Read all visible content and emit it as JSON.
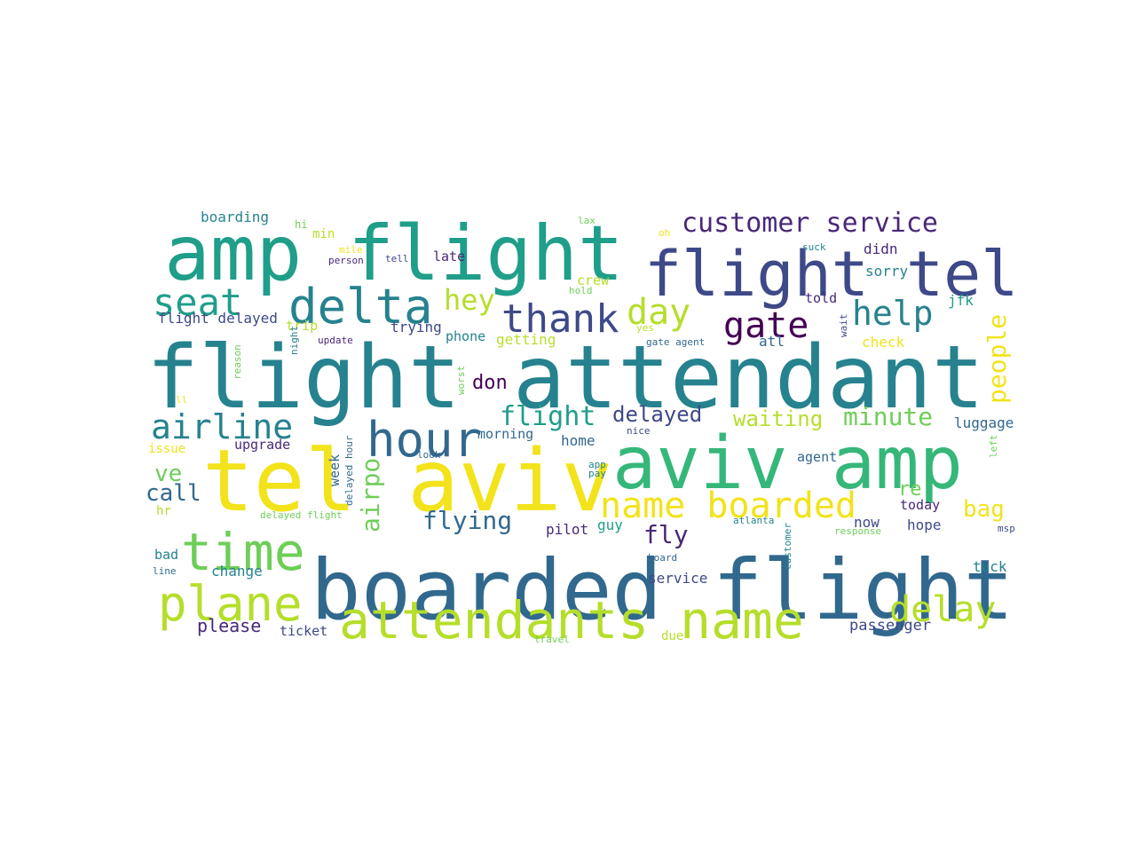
{
  "palette": {
    "yellow": "#f2e31a",
    "lime": "#b5de2b",
    "green": "#6ece58",
    "emerald": "#35b779",
    "teal": "#1f9e89",
    "cyan": "#26828e",
    "blue": "#31688e",
    "indigo": "#3e4989",
    "violet": "#482878",
    "purple": "#440154"
  },
  "words": [
    {
      "text": "flight attendant",
      "color": "cyan"
    },
    {
      "text": "boarded flight",
      "color": "blue"
    },
    {
      "text": "tel aviv",
      "color": "yellow"
    },
    {
      "text": "aviv amp",
      "color": "emerald"
    },
    {
      "text": "amp flight",
      "color": "teal"
    },
    {
      "text": "flight tel",
      "color": "indigo"
    },
    {
      "text": "attendants name",
      "color": "lime"
    },
    {
      "text": "delta",
      "color": "cyan"
    },
    {
      "text": "hour",
      "color": "blue"
    },
    {
      "text": "time",
      "color": "green"
    },
    {
      "text": "plane",
      "color": "lime"
    },
    {
      "text": "name boarded",
      "color": "yellow"
    },
    {
      "text": "thank",
      "color": "indigo"
    },
    {
      "text": "seat",
      "color": "teal"
    },
    {
      "text": "airline",
      "color": "cyan"
    },
    {
      "text": "help",
      "color": "cyan"
    },
    {
      "text": "gate",
      "color": "purple"
    },
    {
      "text": "day",
      "color": "lime"
    },
    {
      "text": "delay",
      "color": "lime"
    },
    {
      "text": "customer service",
      "color": "violet"
    },
    {
      "text": "hey",
      "color": "lime"
    },
    {
      "text": "flight",
      "color": "teal"
    },
    {
      "text": "delayed",
      "color": "indigo"
    },
    {
      "text": "minute",
      "color": "green"
    },
    {
      "text": "people",
      "color": "yellow"
    },
    {
      "text": "airpo",
      "color": "green"
    },
    {
      "text": "flying",
      "color": "blue"
    },
    {
      "text": "fly",
      "color": "violet"
    },
    {
      "text": "call",
      "color": "blue"
    },
    {
      "text": "bag",
      "color": "yellow"
    },
    {
      "text": "ve",
      "color": "green"
    },
    {
      "text": "waiting",
      "color": "lime"
    },
    {
      "text": "re",
      "color": "green"
    },
    {
      "text": "don",
      "color": "purple"
    },
    {
      "text": "boarding",
      "color": "cyan"
    },
    {
      "text": "min",
      "color": "lime"
    },
    {
      "text": "hi",
      "color": "green"
    },
    {
      "text": "mile",
      "color": "yellow"
    },
    {
      "text": "person",
      "color": "violet"
    },
    {
      "text": "tell",
      "color": "indigo"
    },
    {
      "text": "late",
      "color": "violet"
    },
    {
      "text": "lax",
      "color": "green"
    },
    {
      "text": "oh",
      "color": "yellow"
    },
    {
      "text": "suck",
      "color": "cyan"
    },
    {
      "text": "didn",
      "color": "violet"
    },
    {
      "text": "sorry",
      "color": "cyan"
    },
    {
      "text": "crew",
      "color": "lime"
    },
    {
      "text": "hold",
      "color": "green"
    },
    {
      "text": "told",
      "color": "violet"
    },
    {
      "text": "jfk",
      "color": "teal"
    },
    {
      "text": "flight delayed",
      "color": "indigo"
    },
    {
      "text": "trip",
      "color": "lime"
    },
    {
      "text": "trying",
      "color": "indigo"
    },
    {
      "text": "phone",
      "color": "cyan"
    },
    {
      "text": "getting",
      "color": "lime"
    },
    {
      "text": "yes",
      "color": "lime"
    },
    {
      "text": "wait",
      "color": "indigo"
    },
    {
      "text": "update",
      "color": "violet"
    },
    {
      "text": "gate agent",
      "color": "blue"
    },
    {
      "text": "atl",
      "color": "blue"
    },
    {
      "text": "check",
      "color": "yellow"
    },
    {
      "text": "reason",
      "color": "green"
    },
    {
      "text": "night",
      "color": "cyan"
    },
    {
      "text": "worst",
      "color": "green"
    },
    {
      "text": "ll",
      "color": "yellow"
    },
    {
      "text": "morning",
      "color": "blue"
    },
    {
      "text": "nice",
      "color": "indigo"
    },
    {
      "text": "home",
      "color": "blue"
    },
    {
      "text": "luggage",
      "color": "blue"
    },
    {
      "text": "left",
      "color": "green"
    },
    {
      "text": "issue",
      "color": "yellow"
    },
    {
      "text": "upgrade",
      "color": "violet"
    },
    {
      "text": "delayed hour",
      "color": "blue"
    },
    {
      "text": "look",
      "color": "blue"
    },
    {
      "text": "week",
      "color": "blue"
    },
    {
      "text": "app",
      "color": "cyan"
    },
    {
      "text": "pay",
      "color": "cyan"
    },
    {
      "text": "agent",
      "color": "blue"
    },
    {
      "text": "hr",
      "color": "lime"
    },
    {
      "text": "delayed flight",
      "color": "green"
    },
    {
      "text": "today",
      "color": "violet"
    },
    {
      "text": "now",
      "color": "indigo"
    },
    {
      "text": "guy",
      "color": "teal"
    },
    {
      "text": "pilot",
      "color": "violet"
    },
    {
      "text": "hope",
      "color": "indigo"
    },
    {
      "text": "msp",
      "color": "indigo"
    },
    {
      "text": "atlanta",
      "color": "cyan"
    },
    {
      "text": "response",
      "color": "green"
    },
    {
      "text": "customer",
      "color": "cyan"
    },
    {
      "text": "bad",
      "color": "cyan"
    },
    {
      "text": "board",
      "color": "blue"
    },
    {
      "text": "change",
      "color": "cyan"
    },
    {
      "text": "line",
      "color": "blue"
    },
    {
      "text": "service",
      "color": "indigo"
    },
    {
      "text": "tuck",
      "color": "cyan"
    },
    {
      "text": "please",
      "color": "violet"
    },
    {
      "text": "ticket",
      "color": "indigo"
    },
    {
      "text": "passenger",
      "color": "indigo"
    },
    {
      "text": "travel",
      "color": "green"
    },
    {
      "text": "due",
      "color": "lime"
    }
  ]
}
